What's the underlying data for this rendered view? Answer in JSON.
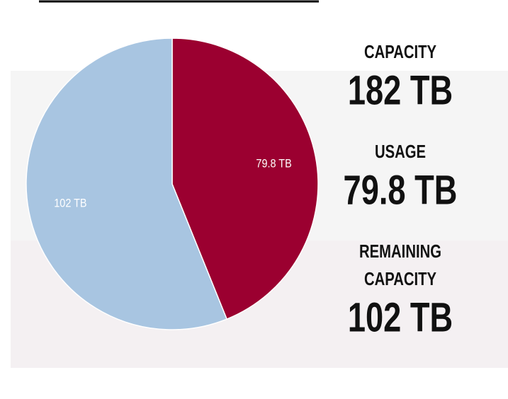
{
  "chart_data": {
    "type": "pie",
    "values": [
      79.8,
      102
    ],
    "value_labels": [
      "79.8 TB",
      "102 TB"
    ],
    "colors": [
      "#9b0030",
      "#a8c5e1"
    ]
  },
  "stats": [
    {
      "label": [
        "CAPACITY"
      ],
      "value": "182 TB"
    },
    {
      "label": [
        "USAGE"
      ],
      "value": "79.8 TB"
    },
    {
      "label": [
        "REMAINING",
        "CAPACITY"
      ],
      "value": "102 TB"
    }
  ]
}
